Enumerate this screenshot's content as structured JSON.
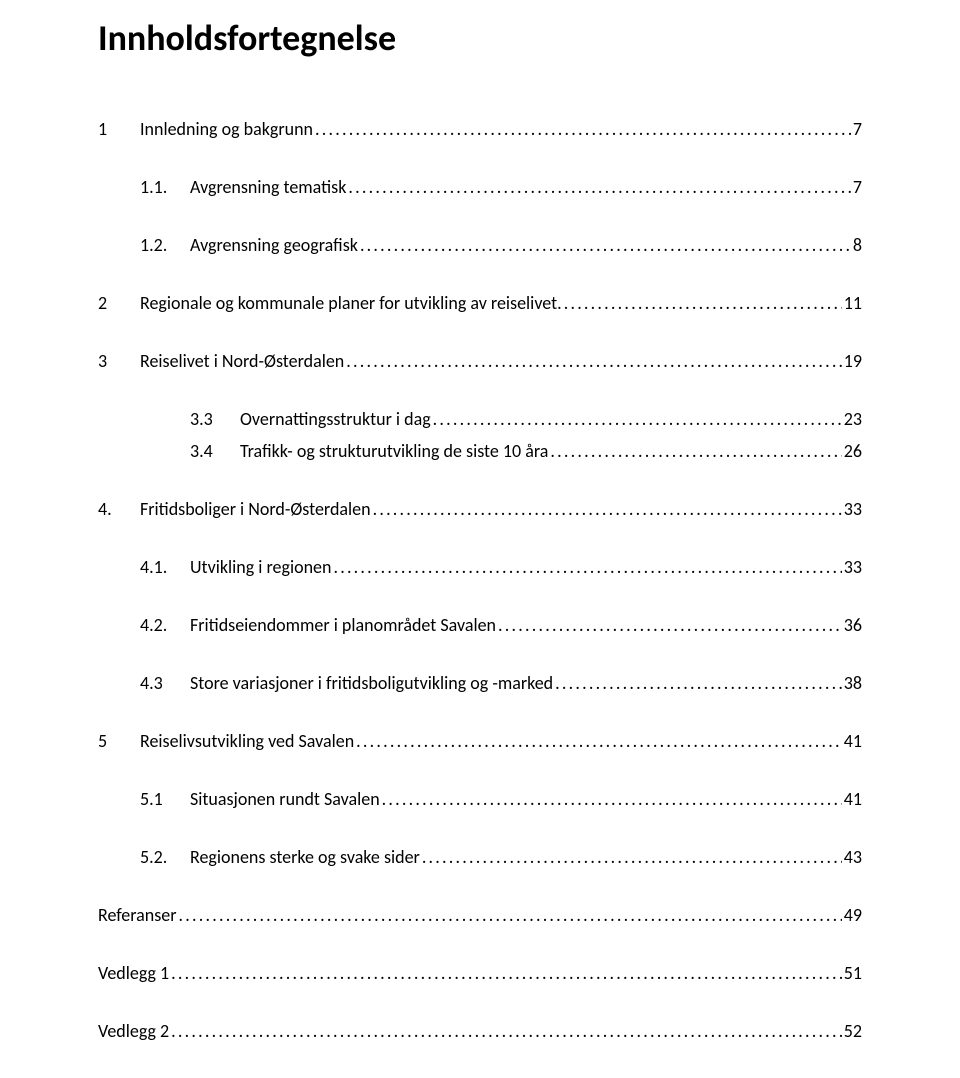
{
  "title": "Innholdsfortegnelse",
  "dots": "..................................................................................................................................................................................................................................................................",
  "toc": [
    {
      "level": 1,
      "num": "1",
      "text": "Innledning og bakgrunn",
      "page": "7"
    },
    {
      "level": 2,
      "num": "1.1.",
      "text": "Avgrensning tematisk",
      "page": "7"
    },
    {
      "level": 2,
      "num": "1.2.",
      "text": "Avgrensning geografisk",
      "page": "8"
    },
    {
      "level": 1,
      "num": "2",
      "text": "Regionale og kommunale planer for utvikling av reiselivet.",
      "page": "11"
    },
    {
      "level": 1,
      "num": "3",
      "text": "Reiselivet i Nord-Østerdalen",
      "page": "19"
    },
    {
      "level": 3,
      "num": "3.3",
      "text": "Overnattingsstruktur i dag",
      "page": "23"
    },
    {
      "level": 3,
      "num": "3.4",
      "text": "Trafikk- og strukturutvikling de siste 10 åra",
      "page": "26"
    },
    {
      "level": 1,
      "num": "4.",
      "text": "Fritidsboliger i Nord-Østerdalen",
      "page": "33"
    },
    {
      "level": 2,
      "num": "4.1.",
      "text": "Utvikling i regionen",
      "page": "33"
    },
    {
      "level": 2,
      "num": "4.2.",
      "text": "Fritidseiendommer i planområdet Savalen",
      "page": "36"
    },
    {
      "level": 2,
      "num": "4.3",
      "text": "Store variasjoner i fritidsboligutvikling og -marked",
      "page": "38"
    },
    {
      "level": 1,
      "num": "5",
      "text": "Reiselivsutvikling ved Savalen",
      "page": "41"
    },
    {
      "level": 2,
      "num": "5.1",
      "text": "Situasjonen rundt Savalen",
      "page": "41"
    },
    {
      "level": 2,
      "num": "5.2.",
      "text": "Regionens sterke og svake sider",
      "page": "43"
    },
    {
      "level": 0,
      "num": "",
      "text": "Referanser",
      "page": "49"
    },
    {
      "level": 0,
      "num": "",
      "text": "Vedlegg 1",
      "page": "51"
    },
    {
      "level": 0,
      "num": "",
      "text": "Vedlegg 2",
      "page": "52"
    }
  ]
}
